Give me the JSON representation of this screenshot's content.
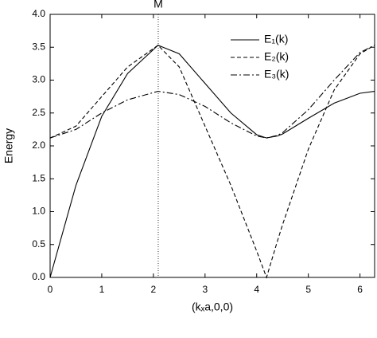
{
  "chart_data": {
    "type": "line",
    "xlabel": "(kₓa,0,0)",
    "ylabel": "Energy",
    "annotations": [
      {
        "text": "M",
        "x": 2.094
      }
    ],
    "x": [
      0,
      0.5,
      1,
      1.5,
      2.09,
      2.5,
      3,
      3.5,
      4.0,
      4.19,
      4.4,
      4.5,
      5,
      5.5,
      6,
      6.28
    ],
    "series": [
      {
        "name": "E₁(k)",
        "color": "#000000",
        "dash": "solid",
        "values": [
          0,
          1.4,
          2.45,
          3.1,
          3.53,
          3.4,
          2.95,
          2.5,
          2.17,
          2.12,
          2.15,
          2.18,
          2.42,
          2.65,
          2.8,
          2.83
        ]
      },
      {
        "name": "E₂(k)",
        "color": "#000000",
        "dash": "dash",
        "values": [
          2.12,
          2.3,
          2.75,
          3.2,
          3.53,
          3.2,
          2.3,
          1.4,
          0.4,
          0,
          0.55,
          0.8,
          1.95,
          2.85,
          3.4,
          3.53
        ]
      },
      {
        "name": "E₃(k)",
        "color": "#000000",
        "dash": "dashdot",
        "values": [
          2.12,
          2.25,
          2.5,
          2.7,
          2.83,
          2.78,
          2.6,
          2.35,
          2.15,
          2.12,
          2.16,
          2.2,
          2.55,
          3.0,
          3.42,
          3.53
        ]
      }
    ],
    "xlim": [
      0,
      6.283
    ],
    "ylim": [
      0,
      4
    ],
    "xticks": [
      0,
      1,
      2,
      3,
      4,
      5,
      6
    ],
    "yticks": [
      {
        "value": 0,
        "label": "0.0"
      },
      {
        "value": 0.5,
        "label": "0.5"
      },
      {
        "value": 1,
        "label": "1.0"
      },
      {
        "value": 1.5,
        "label": "1.5"
      },
      {
        "value": 2,
        "label": "2.0"
      },
      {
        "value": 2.5,
        "label": "2.5"
      },
      {
        "value": 3,
        "label": "3.0"
      },
      {
        "value": 3.5,
        "label": "3.5"
      },
      {
        "value": 4,
        "label": "4.0"
      }
    ],
    "legend": "upper right",
    "grid": false
  }
}
